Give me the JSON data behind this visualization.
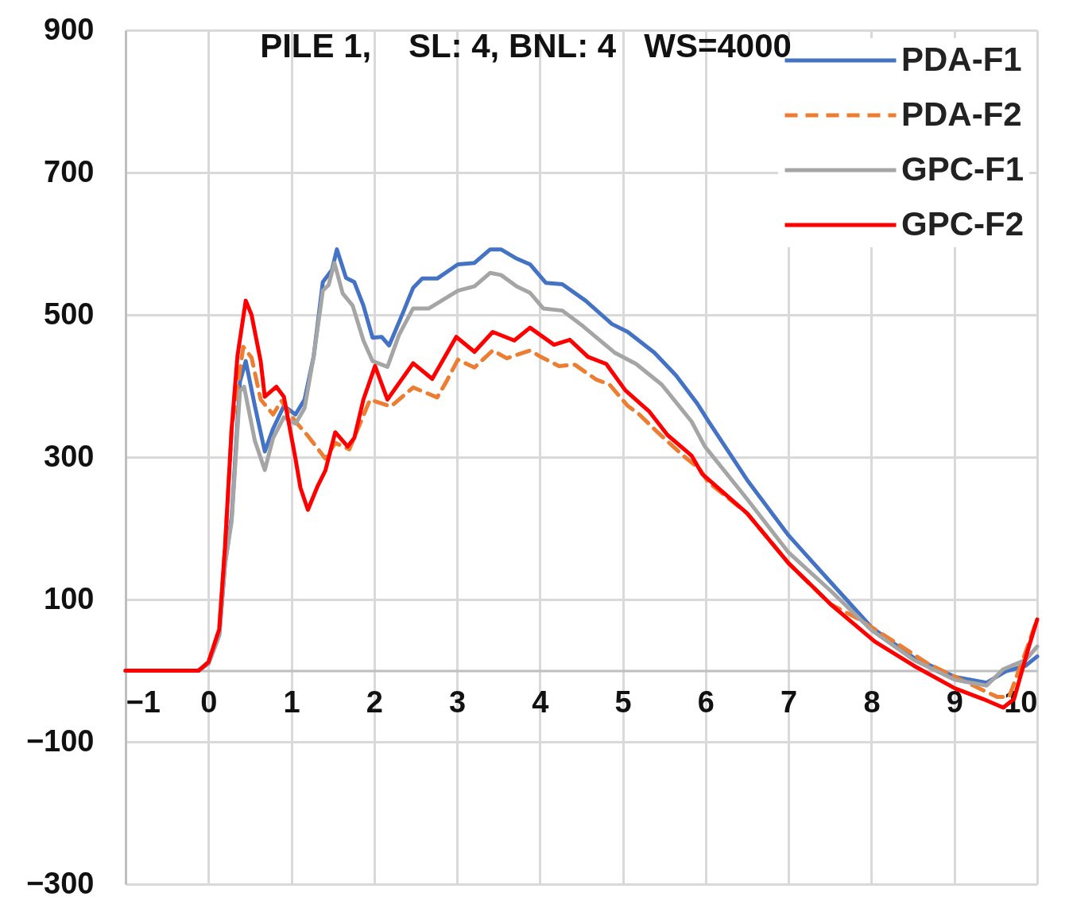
{
  "chart_data": {
    "type": "line",
    "title": "PILE 1,    SL: 4, BNL: 4   WS=4000",
    "xlim": [
      -1,
      10
    ],
    "xticks": [
      -1,
      0,
      1,
      2,
      3,
      4,
      5,
      6,
      7,
      8,
      9,
      10
    ],
    "ylim": [
      -300,
      900
    ],
    "yticks": [
      -300,
      -100,
      100,
      300,
      500,
      700,
      900
    ],
    "grid": true,
    "legend": "top right",
    "series": [
      {
        "name": "PDA-F1",
        "color": "#4472c4",
        "line_style": "solid",
        "x": [
          -1,
          -0.12,
          0,
          0.13,
          0.2,
          0.28,
          0.38,
          0.45,
          0.56,
          0.68,
          0.78,
          0.91,
          1.05,
          1.16,
          1.27,
          1.38,
          1.49,
          1.55,
          1.66,
          1.76,
          1.87,
          1.98,
          2.09,
          2.18,
          2.34,
          2.47,
          2.58,
          2.76,
          3.01,
          3.21,
          3.4,
          3.53,
          3.72,
          3.88,
          4.07,
          4.27,
          4.55,
          4.87,
          5.06,
          5.38,
          5.64,
          5.9,
          6.03,
          6.5,
          7.0,
          7.51,
          8.0,
          8.51,
          9.01,
          9.39,
          9.62,
          9.86,
          10.0
        ],
        "values": [
          0,
          0,
          10,
          50,
          150,
          216,
          406,
          435,
          372,
          308,
          340,
          372,
          360,
          381,
          442,
          546,
          563,
          592,
          552,
          546,
          513,
          468,
          469,
          457,
          501,
          538,
          551,
          551,
          571,
          573,
          592,
          592,
          579,
          571,
          545,
          543,
          520,
          487,
          476,
          447,
          415,
          375,
          351,
          268,
          190,
          124,
          61,
          18,
          -9,
          -17,
          -1,
          7,
          20
        ]
      },
      {
        "name": "PDA-F2",
        "color": "#ed7d31",
        "line_style": "dashed",
        "x": [
          -1,
          -0.12,
          0,
          0.13,
          0.2,
          0.28,
          0.42,
          0.52,
          0.63,
          0.78,
          0.88,
          1.05,
          1.2,
          1.41,
          1.53,
          1.7,
          1.95,
          2.2,
          2.47,
          2.76,
          2.87,
          3.01,
          3.21,
          3.43,
          3.6,
          3.88,
          4.01,
          4.23,
          4.42,
          4.68,
          4.84,
          5.06,
          5.19,
          5.42,
          5.73,
          5.93,
          6.03,
          6.5,
          7.0,
          7.51,
          7.84,
          8.27,
          8.68,
          9.12,
          9.52,
          9.66,
          9.86,
          10.0
        ],
        "values": [
          0,
          0,
          12,
          58,
          174,
          340,
          455,
          440,
          381,
          360,
          379,
          350,
          330,
          298,
          320,
          311,
          381,
          371,
          398,
          384,
          406,
          437,
          426,
          450,
          439,
          450,
          441,
          428,
          430,
          409,
          402,
          372,
          361,
          335,
          302,
          283,
          265,
          221,
          151,
          93,
          73,
          41,
          10,
          -15,
          -37,
          -37,
          26,
          73
        ]
      },
      {
        "name": "GPC-F1",
        "color": "#a5a5a5",
        "line_style": "solid",
        "x": [
          -1,
          -0.12,
          0,
          0.13,
          0.2,
          0.28,
          0.38,
          0.43,
          0.56,
          0.68,
          0.78,
          0.91,
          1.05,
          1.16,
          1.27,
          1.38,
          1.45,
          1.52,
          1.62,
          1.74,
          1.87,
          1.98,
          2.16,
          2.3,
          2.47,
          2.66,
          3.01,
          3.21,
          3.4,
          3.53,
          3.72,
          3.88,
          4.04,
          4.27,
          4.52,
          4.9,
          5.16,
          5.47,
          5.83,
          5.99,
          6.5,
          7.0,
          7.51,
          8.0,
          8.51,
          9.01,
          9.39,
          9.59,
          9.86,
          10.0
        ],
        "values": [
          0,
          0,
          10,
          50,
          150,
          210,
          393,
          399,
          323,
          282,
          327,
          356,
          347,
          369,
          442,
          534,
          542,
          573,
          530,
          513,
          464,
          435,
          427,
          472,
          509,
          509,
          534,
          540,
          559,
          556,
          540,
          531,
          509,
          506,
          484,
          447,
          431,
          402,
          350,
          315,
          241,
          166,
          112,
          57,
          15,
          -13,
          -21,
          2,
          15,
          34
        ]
      },
      {
        "name": "GPC-F2",
        "color": "#ff0000",
        "line_style": "solid",
        "x": [
          -1,
          -0.12,
          0,
          0.13,
          0.2,
          0.28,
          0.35,
          0.45,
          0.52,
          0.63,
          0.68,
          0.82,
          0.91,
          1.05,
          1.11,
          1.2,
          1.32,
          1.41,
          1.53,
          1.68,
          1.76,
          1.87,
          2.01,
          2.16,
          2.47,
          2.7,
          2.99,
          3.21,
          3.43,
          3.69,
          3.88,
          4.17,
          4.36,
          4.58,
          4.8,
          5.03,
          5.32,
          5.54,
          5.83,
          5.96,
          6.5,
          7.0,
          7.51,
          8.04,
          8.51,
          9.01,
          9.35,
          9.59,
          9.72,
          9.88,
          10.0
        ],
        "values": [
          0,
          0,
          12,
          58,
          174,
          340,
          442,
          520,
          500,
          435,
          385,
          399,
          385,
          298,
          257,
          226,
          260,
          281,
          335,
          315,
          327,
          381,
          428,
          381,
          432,
          410,
          469,
          448,
          476,
          464,
          482,
          458,
          465,
          441,
          431,
          394,
          364,
          331,
          302,
          276,
          221,
          151,
          93,
          41,
          7,
          -25,
          -40,
          -52,
          -40,
          26,
          72
        ]
      }
    ]
  }
}
